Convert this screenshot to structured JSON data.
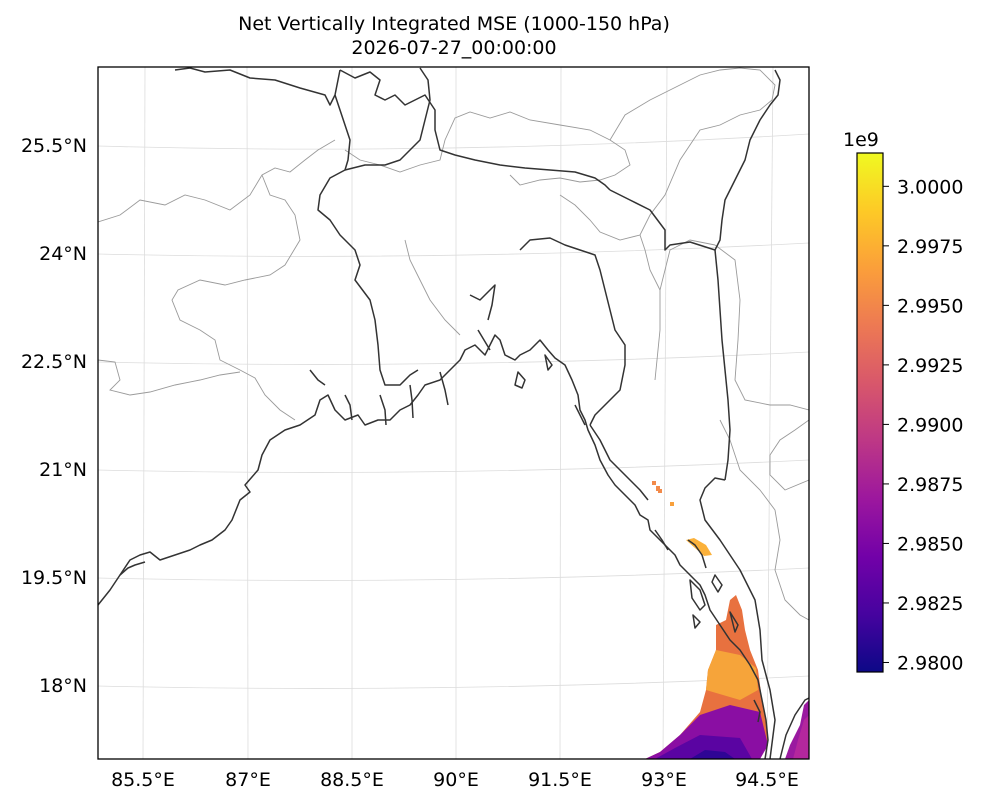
{
  "chart_data": {
    "type": "heatmap",
    "title": "Net Vertically Integrated MSE (1000-150 hPa)",
    "subtitle": "2026-07-27_00:00:00",
    "xlabel": "",
    "ylabel": "",
    "x_ticks": [
      "85.5°E",
      "87°E",
      "88.5°E",
      "90°E",
      "91.5°E",
      "93°E",
      "94.5°E"
    ],
    "y_ticks": [
      "25.5°N",
      "24°N",
      "22.5°N",
      "21°N",
      "19.5°N",
      "18°N"
    ],
    "lon_range": [
      84.85,
      94.9
    ],
    "lat_range": [
      17.0,
      26.8
    ],
    "grid": true,
    "colormap": "plasma",
    "colorbar": {
      "multiplier": "1e9",
      "range": [
        2.9796,
        3.0014
      ],
      "ticks": [
        "2.9800",
        "2.9825",
        "2.9850",
        "2.9875",
        "2.9900",
        "2.9925",
        "2.9950",
        "2.9975",
        "3.0000"
      ],
      "colors": [
        "#0d0887",
        "#46039f",
        "#7201a8",
        "#9c179e",
        "#bd3786",
        "#d8576b",
        "#ed7953",
        "#fb9f3a",
        "#fdca26",
        "#f0f921"
      ]
    },
    "field_cells": [
      {
        "lon": 92.7,
        "lat": 20.9,
        "value": 2.9955
      },
      {
        "lon": 92.8,
        "lat": 20.85,
        "value": 2.9955
      },
      {
        "lon": 93.0,
        "lat": 20.6,
        "value": 2.9962
      },
      {
        "lon": 93.3,
        "lat": 20.0,
        "value": 2.9985
      },
      {
        "lon": 93.6,
        "lat": 19.85,
        "value": 2.999
      },
      {
        "lon": 94.0,
        "lat": 19.1,
        "value": 2.9978
      },
      {
        "lon": 93.9,
        "lat": 18.5,
        "value": 2.9975
      },
      {
        "lon": 93.8,
        "lat": 18.0,
        "value": 2.9955
      },
      {
        "lon": 93.5,
        "lat": 17.5,
        "value": 2.987
      },
      {
        "lon": 93.4,
        "lat": 17.1,
        "value": 2.9825
      },
      {
        "lon": 94.8,
        "lat": 17.3,
        "value": 2.988
      }
    ]
  }
}
